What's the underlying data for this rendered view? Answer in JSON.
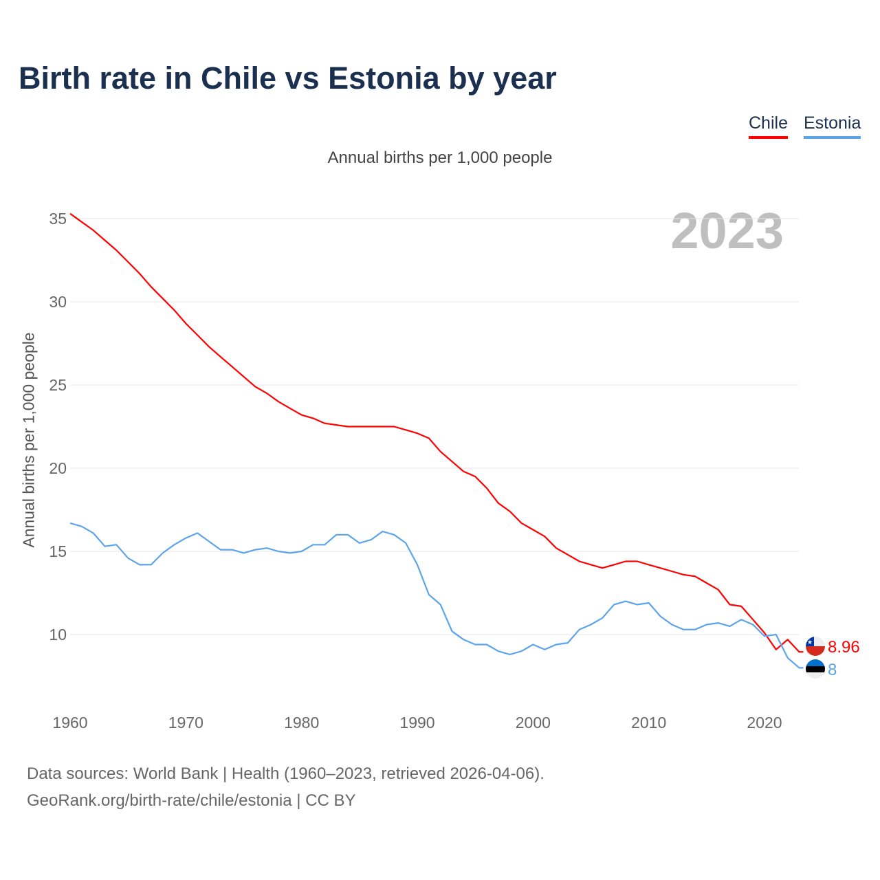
{
  "title": "Birth rate in Chile vs Estonia by year",
  "subtitle": "Annual births per 1,000 people",
  "source_line1": "Data sources: World Bank | Health (1960–2023, retrieved 2026-04-06).",
  "source_line2": "GeoRank.org/birth-rate/chile/estonia | CC BY",
  "chart_data": {
    "type": "line",
    "title": "Birth rate in Chile vs Estonia by year",
    "ylabel": "Annual births per 1,000 people",
    "xlabel": "",
    "year_watermark": "2023",
    "xlim": [
      1960,
      2023
    ],
    "ylim": [
      7,
      35
    ],
    "xticks": [
      1960,
      1970,
      1980,
      1990,
      2000,
      2010,
      2020
    ],
    "yticks": [
      10,
      15,
      20,
      25,
      30,
      35
    ],
    "grid": true,
    "legend": "top-right",
    "x": [
      1960,
      1961,
      1962,
      1963,
      1964,
      1965,
      1966,
      1967,
      1968,
      1969,
      1970,
      1971,
      1972,
      1973,
      1974,
      1975,
      1976,
      1977,
      1978,
      1979,
      1980,
      1981,
      1982,
      1983,
      1984,
      1985,
      1986,
      1987,
      1988,
      1989,
      1990,
      1991,
      1992,
      1993,
      1994,
      1995,
      1996,
      1997,
      1998,
      1999,
      2000,
      2001,
      2002,
      2003,
      2004,
      2005,
      2006,
      2007,
      2008,
      2009,
      2010,
      2011,
      2012,
      2013,
      2014,
      2015,
      2016,
      2017,
      2018,
      2019,
      2020,
      2021,
      2022,
      2023
    ],
    "series": [
      {
        "name": "Chile",
        "color": "#ff0000",
        "end_label": "8.96",
        "values": [
          35.3,
          34.8,
          34.3,
          33.7,
          33.1,
          32.4,
          31.7,
          30.9,
          30.2,
          29.5,
          28.7,
          28.0,
          27.3,
          26.7,
          26.1,
          25.5,
          24.9,
          24.5,
          24.0,
          23.6,
          23.2,
          23.0,
          22.7,
          22.6,
          22.5,
          22.5,
          22.5,
          22.5,
          22.5,
          22.3,
          22.1,
          21.8,
          21.0,
          20.4,
          19.8,
          19.5,
          18.8,
          17.9,
          17.4,
          16.7,
          16.3,
          15.9,
          15.2,
          14.8,
          14.4,
          14.2,
          14.0,
          14.2,
          14.4,
          14.4,
          14.2,
          14.0,
          13.8,
          13.6,
          13.5,
          13.1,
          12.7,
          11.8,
          11.7,
          10.9,
          10.1,
          9.1,
          9.7,
          8.96
        ]
      },
      {
        "name": "Estonia",
        "color": "#5ba4ea",
        "end_label": "8",
        "values": [
          16.7,
          16.5,
          16.1,
          15.3,
          15.4,
          14.6,
          14.2,
          14.2,
          14.9,
          15.4,
          15.8,
          16.1,
          15.6,
          15.1,
          15.1,
          14.9,
          15.1,
          15.2,
          15.0,
          14.9,
          15.0,
          15.4,
          15.4,
          16.0,
          16.0,
          15.5,
          15.7,
          16.2,
          16.0,
          15.5,
          14.2,
          12.4,
          11.8,
          10.2,
          9.7,
          9.4,
          9.4,
          9.0,
          8.8,
          9.0,
          9.4,
          9.1,
          9.4,
          9.5,
          10.3,
          10.6,
          11.0,
          11.8,
          12.0,
          11.8,
          11.9,
          11.1,
          10.6,
          10.3,
          10.3,
          10.6,
          10.7,
          10.5,
          10.9,
          10.6,
          9.9,
          10.0,
          8.6,
          8.0
        ]
      }
    ]
  }
}
